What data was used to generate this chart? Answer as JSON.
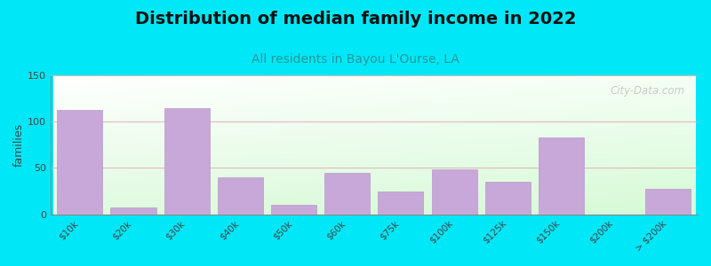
{
  "title": "Distribution of median family income in 2022",
  "subtitle": "All residents in Bayou L'Ourse, LA",
  "ylabel": "families",
  "categories": [
    "$10k",
    "$20k",
    "$30k",
    "$40k",
    "$50k",
    "$60k",
    "$75k",
    "$100k",
    "$125k",
    "$150k",
    "$200k",
    "> $200k"
  ],
  "values": [
    113,
    7,
    115,
    40,
    10,
    45,
    25,
    49,
    35,
    83,
    0,
    27
  ],
  "bar_color": "#c8a8d8",
  "bar_edge_color": "#b898c8",
  "background_outer": "#00e8f8",
  "ylim": [
    0,
    150
  ],
  "yticks": [
    0,
    50,
    100,
    150
  ],
  "title_fontsize": 14,
  "subtitle_fontsize": 10,
  "watermark": "City-Data.com"
}
